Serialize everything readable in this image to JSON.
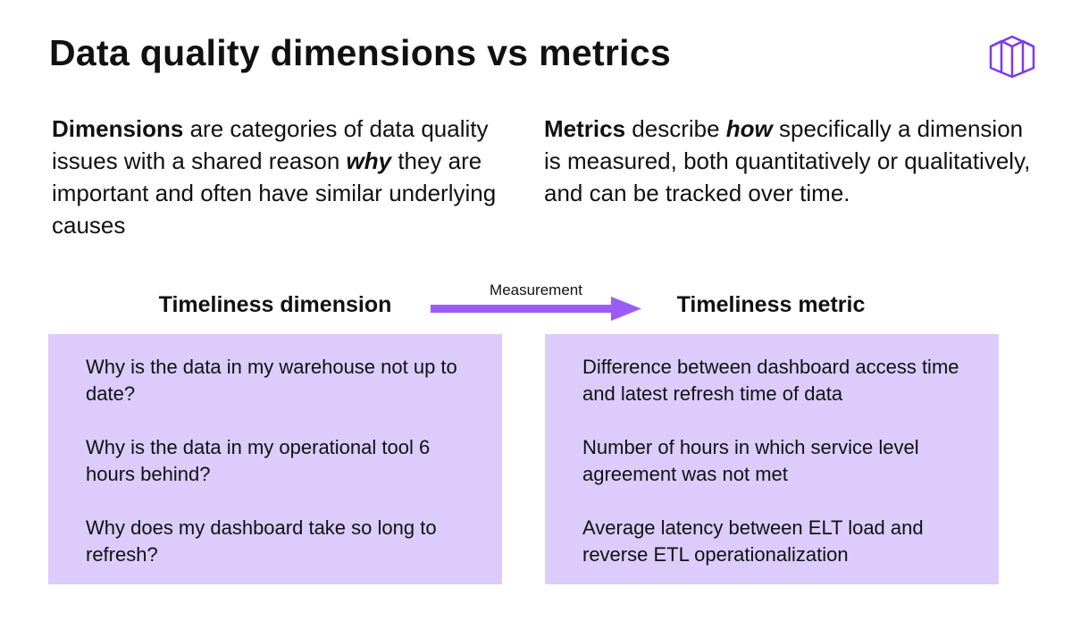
{
  "header": {
    "title": "Data quality dimensions vs metrics"
  },
  "intro": {
    "left": [
      "Dimensions",
      " are categories of data quality issues with a shared reason ",
      "why",
      " they are important and often have similar underlying causes"
    ],
    "right": [
      "Metrics",
      " describe ",
      "how",
      " specifically a dimension is measured, both quantitatively or qualitatively, and can be tracked over time."
    ]
  },
  "diagram": {
    "left_heading": "Timeliness dimension",
    "arrow_label": "Measurement",
    "right_heading": "Timeliness metric",
    "left_items": [
      "Why is the data in my warehouse not up to date?",
      "Why is the data in my operational tool 6 hours behind?",
      "Why does my dashboard take so long to refresh?"
    ],
    "right_items": [
      "Difference between dashboard  access time and latest refresh time of data",
      "Number of hours in which service level agreement was not met",
      "Average latency between ELT load and reverse ETL operationalization"
    ]
  }
}
